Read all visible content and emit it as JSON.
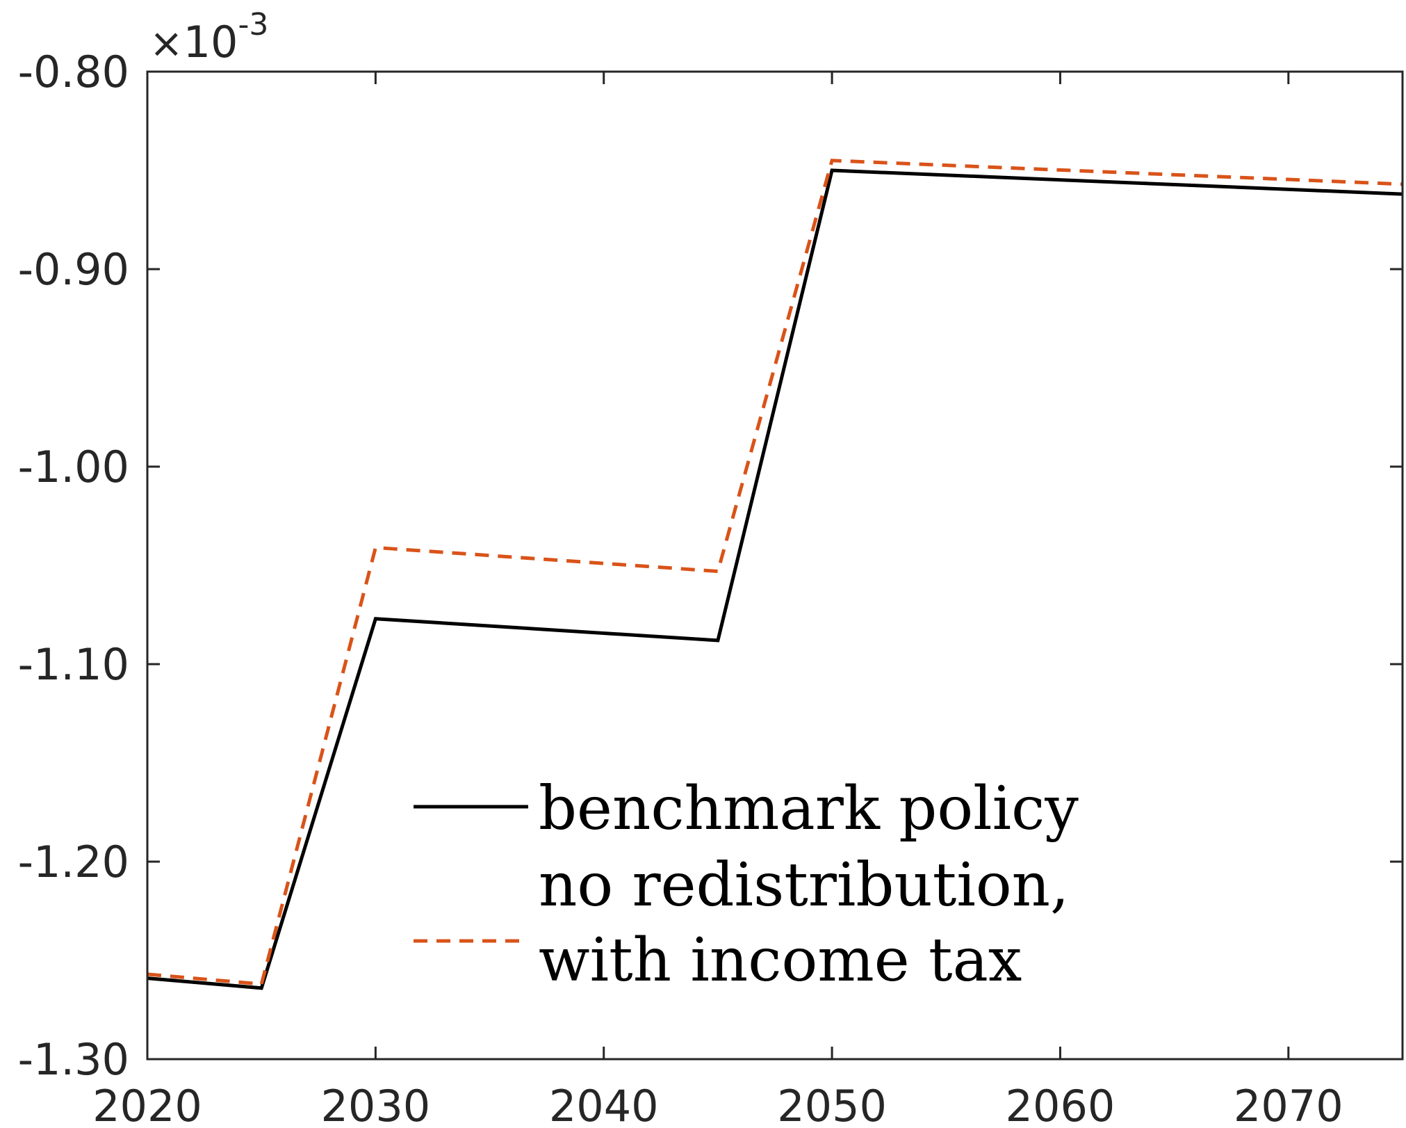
{
  "chart_data": {
    "type": "line",
    "title": "",
    "xlabel": "",
    "ylabel": "",
    "xlim": [
      2020,
      2075
    ],
    "ylim": [
      -1.3,
      -0.8
    ],
    "y_multiplier": {
      "base": "10",
      "exponent": "-3"
    },
    "x_ticks": [
      {
        "value": 2020,
        "label": "2020"
      },
      {
        "value": 2030,
        "label": "2030"
      },
      {
        "value": 2040,
        "label": "2040"
      },
      {
        "value": 2050,
        "label": "2050"
      },
      {
        "value": 2060,
        "label": "2060"
      },
      {
        "value": 2070,
        "label": "2070"
      }
    ],
    "y_ticks": [
      {
        "value": -0.8,
        "label": "-0.80"
      },
      {
        "value": -0.9,
        "label": "-0.90"
      },
      {
        "value": -1.0,
        "label": "-1.00"
      },
      {
        "value": -1.1,
        "label": "-1.10"
      },
      {
        "value": -1.2,
        "label": "-1.20"
      },
      {
        "value": -1.3,
        "label": "-1.30"
      }
    ],
    "grid": false,
    "legend_position": "lower-center",
    "series": [
      {
        "name": "benchmark policy",
        "legend_lines": [
          "benchmark policy"
        ],
        "color": "#000000",
        "style": "solid",
        "x": [
          2020,
          2025,
          2030,
          2045,
          2050,
          2075
        ],
        "y": [
          -1.259,
          -1.264,
          -1.077,
          -1.088,
          -0.85,
          -0.862
        ]
      },
      {
        "name": "no redistribution, with income tax",
        "legend_lines": [
          "no redistribution,",
          "with income tax"
        ],
        "color": "#D95319",
        "style": "dashed",
        "x": [
          2020,
          2025,
          2030,
          2045,
          2050,
          2075
        ],
        "y": [
          -1.257,
          -1.262,
          -1.041,
          -1.053,
          -0.845,
          -0.857
        ]
      }
    ]
  }
}
